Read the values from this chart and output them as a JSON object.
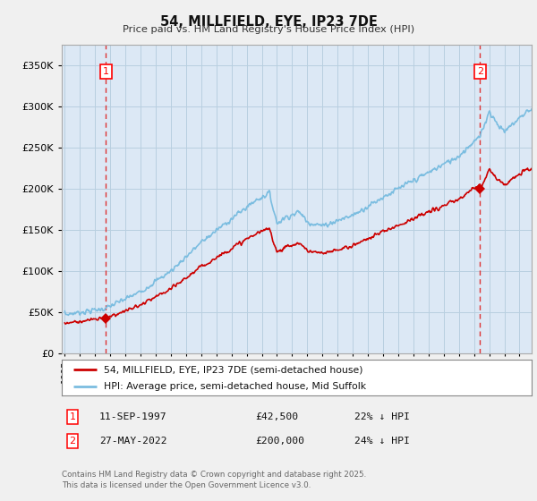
{
  "title": "54, MILLFIELD, EYE, IP23 7DE",
  "subtitle": "Price paid vs. HM Land Registry's House Price Index (HPI)",
  "ytick_vals": [
    0,
    50000,
    100000,
    150000,
    200000,
    250000,
    300000,
    350000
  ],
  "ylim": [
    0,
    375000
  ],
  "xlim_start": 1994.8,
  "xlim_end": 2025.8,
  "sale1_date": 1997.7,
  "sale1_price": 42500,
  "sale1_label": "1",
  "sale2_date": 2022.4,
  "sale2_price": 200000,
  "sale2_label": "2",
  "hpi_color": "#7bbde0",
  "price_color": "#cc0000",
  "dashed_line_color": "#dd3333",
  "plot_bg_color": "#dce8f5",
  "background_color": "#f0f0f0",
  "grid_color": "#b8cfe0",
  "legend_label_price": "54, MILLFIELD, EYE, IP23 7DE (semi-detached house)",
  "legend_label_hpi": "HPI: Average price, semi-detached house, Mid Suffolk",
  "table_row1": [
    "1",
    "11-SEP-1997",
    "£42,500",
    "22% ↓ HPI"
  ],
  "table_row2": [
    "2",
    "27-MAY-2022",
    "£200,000",
    "24% ↓ HPI"
  ],
  "footnote": "Contains HM Land Registry data © Crown copyright and database right 2025.\nThis data is licensed under the Open Government Licence v3.0."
}
